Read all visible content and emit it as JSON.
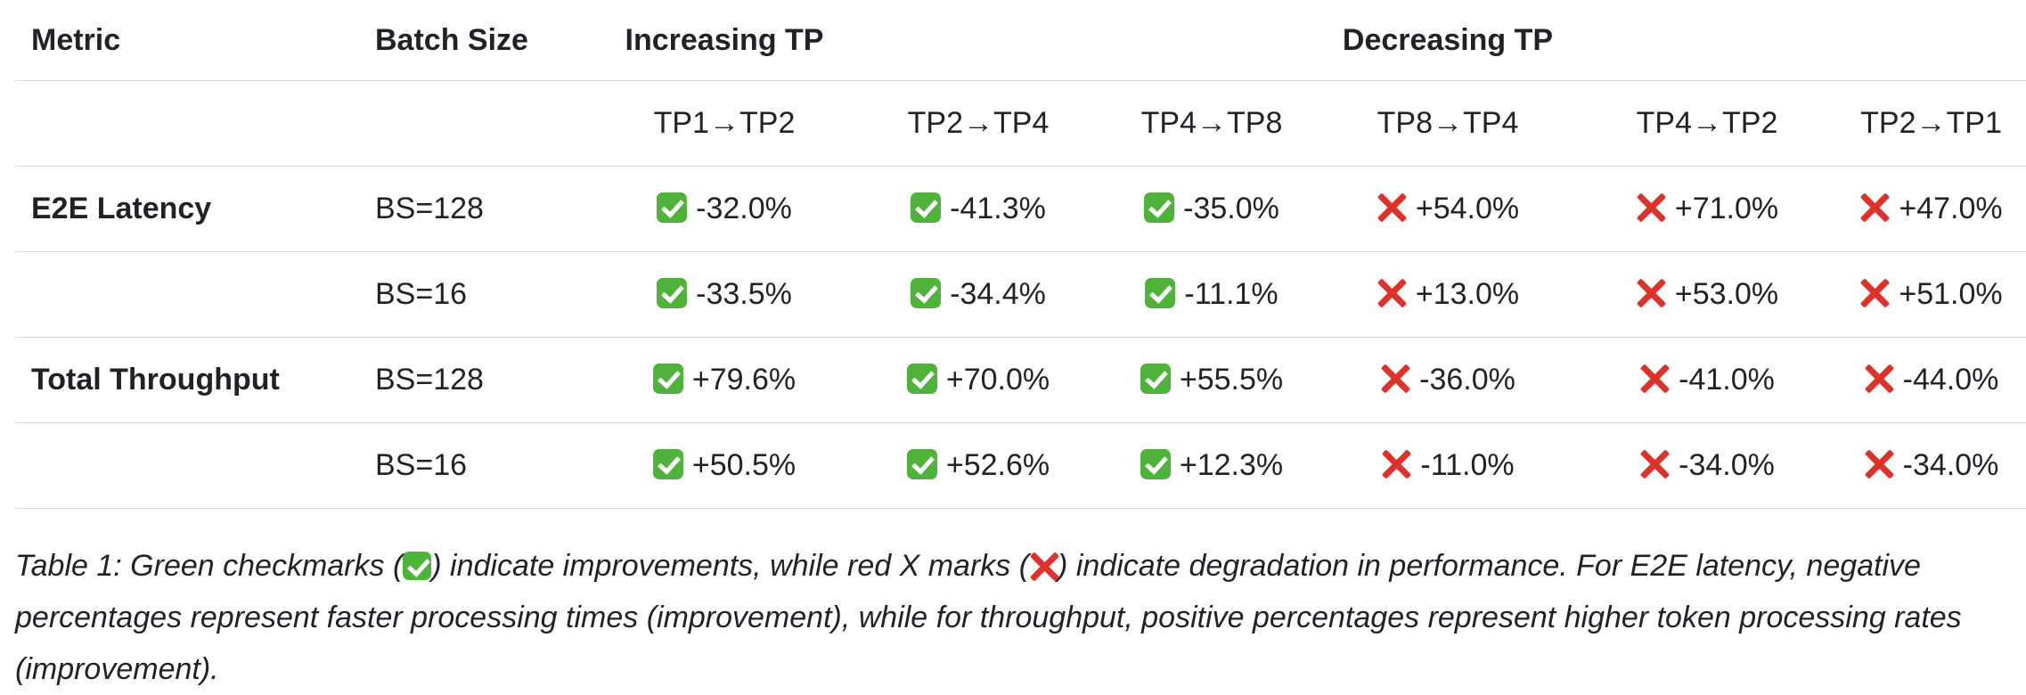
{
  "table": {
    "header": {
      "metric": "Metric",
      "batch_size": "Batch Size",
      "increasing": "Increasing TP",
      "decreasing": "Decreasing TP"
    },
    "subheader": [
      "TP1→TP2",
      "TP2→TP4",
      "TP4→TP8",
      "TP8→TP4",
      "TP4→TP2",
      "TP2→TP1"
    ],
    "rows": [
      {
        "metric": "E2E Latency",
        "batch": "BS=128",
        "cells": [
          {
            "mark": "check",
            "value": "-32.0%"
          },
          {
            "mark": "check",
            "value": "-41.3%"
          },
          {
            "mark": "check",
            "value": "-35.0%"
          },
          {
            "mark": "cross",
            "value": "+54.0%"
          },
          {
            "mark": "cross",
            "value": "+71.0%"
          },
          {
            "mark": "cross",
            "value": "+47.0%"
          }
        ]
      },
      {
        "metric": "",
        "batch": "BS=16",
        "cells": [
          {
            "mark": "check",
            "value": "-33.5%"
          },
          {
            "mark": "check",
            "value": "-34.4%"
          },
          {
            "mark": "check",
            "value": "-11.1%"
          },
          {
            "mark": "cross",
            "value": "+13.0%"
          },
          {
            "mark": "cross",
            "value": "+53.0%"
          },
          {
            "mark": "cross",
            "value": "+51.0%"
          }
        ]
      },
      {
        "metric": "Total Throughput",
        "batch": "BS=128",
        "cells": [
          {
            "mark": "check",
            "value": "+79.6%"
          },
          {
            "mark": "check",
            "value": "+70.0%"
          },
          {
            "mark": "check",
            "value": "+55.5%"
          },
          {
            "mark": "cross",
            "value": "-36.0%"
          },
          {
            "mark": "cross",
            "value": "-41.0%"
          },
          {
            "mark": "cross",
            "value": "-44.0%"
          }
        ]
      },
      {
        "metric": "",
        "batch": "BS=16",
        "cells": [
          {
            "mark": "check",
            "value": "+50.5%"
          },
          {
            "mark": "check",
            "value": "+52.6%"
          },
          {
            "mark": "check",
            "value": "+12.3%"
          },
          {
            "mark": "cross",
            "value": "-11.0%"
          },
          {
            "mark": "cross",
            "value": "-34.0%"
          },
          {
            "mark": "cross",
            "value": "-34.0%"
          }
        ]
      }
    ]
  },
  "caption": {
    "part1": "Table 1: Green checkmarks (",
    "part2": ") indicate improvements, while red X marks (",
    "part3": ") indicate degradation in performance. For E2E latency, negative percentages represent faster processing times (improvement), while for throughput, positive percentages represent higher token processing rates (improvement)."
  },
  "colors": {
    "check": "#4fb33b",
    "cross": "#e0302a",
    "border": "#d8dde3"
  }
}
